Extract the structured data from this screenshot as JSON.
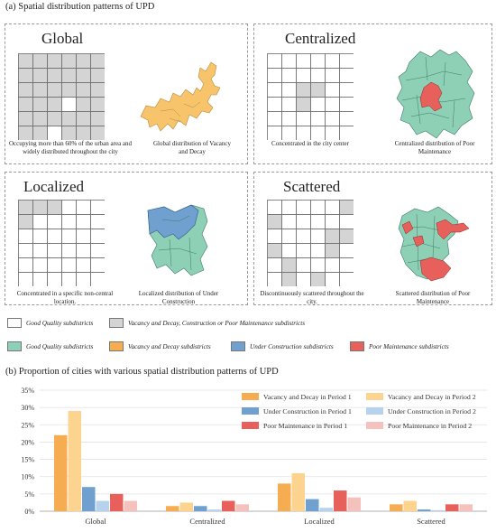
{
  "part_a_title": "(a) Spatial distribution patterns of UPD",
  "part_b_title": "(b) Proportion of cities with various spatial distribution patterns of UPD",
  "colors": {
    "good": "#ffffff",
    "gray": "#d4d4d4",
    "teal": "#8ed0b6",
    "vacancy": "#f6ad51",
    "vacancy_light": "#fcd48f",
    "construction": "#6fa0cf",
    "construction_light": "#b7d2ec",
    "poor": "#e8605b",
    "poor_light": "#f4c1bd",
    "map_vacancy": "#f8c46b"
  },
  "panels": {
    "global": {
      "title": "Global",
      "grid_caption": "Occupying more than 60% of the urban area and widely distributed throughout the city",
      "map_caption": "Global distribution of Vacancy and Decay",
      "grid": [
        [
          1,
          1,
          1,
          1,
          1,
          1
        ],
        [
          1,
          1,
          1,
          1,
          1,
          1
        ],
        [
          1,
          1,
          1,
          1,
          1,
          1
        ],
        [
          1,
          1,
          1,
          0,
          1,
          1
        ],
        [
          1,
          1,
          1,
          1,
          1,
          1
        ],
        [
          1,
          1,
          0,
          1,
          1,
          1
        ]
      ]
    },
    "centralized": {
      "title": "Centralized",
      "grid_caption": "Concentrated in the city center",
      "map_caption": "Centralized distribution of Poor Maintenance",
      "grid": [
        [
          0,
          0,
          0,
          0,
          0,
          0
        ],
        [
          0,
          0,
          0,
          0,
          0,
          0
        ],
        [
          0,
          0,
          1,
          1,
          0,
          0
        ],
        [
          0,
          0,
          1,
          0,
          0,
          0
        ],
        [
          0,
          0,
          0,
          0,
          0,
          0
        ],
        [
          0,
          0,
          0,
          0,
          0,
          0
        ]
      ]
    },
    "localized": {
      "title": "Localized",
      "grid_caption": "Concentrated in a specific non-central location.",
      "map_caption": "Localized distribution of Under Construction",
      "grid": [
        [
          1,
          1,
          1,
          0,
          0,
          0
        ],
        [
          1,
          0,
          0,
          0,
          0,
          0
        ],
        [
          0,
          0,
          0,
          0,
          0,
          0
        ],
        [
          0,
          0,
          0,
          0,
          0,
          0
        ],
        [
          0,
          0,
          0,
          0,
          0,
          0
        ],
        [
          0,
          0,
          0,
          0,
          0,
          0
        ]
      ]
    },
    "scattered": {
      "title": "Scattered",
      "grid_caption": "Discontinuously scattered throughout the city.",
      "map_caption": "Scattered distribution of Poor Maintenance",
      "grid": [
        [
          0,
          0,
          0,
          0,
          0,
          1
        ],
        [
          1,
          0,
          0,
          0,
          0,
          0
        ],
        [
          0,
          0,
          0,
          0,
          1,
          1
        ],
        [
          1,
          0,
          0,
          0,
          1,
          0
        ],
        [
          0,
          1,
          0,
          0,
          0,
          0
        ],
        [
          0,
          1,
          0,
          1,
          0,
          0
        ]
      ]
    }
  },
  "legend": {
    "row1": [
      {
        "label": "Good Quality subdistricts",
        "color": "#ffffff"
      },
      {
        "label": "Vacancy and Decay, Construction or Poor Maintenance subdistricts",
        "color": "#d4d4d4"
      }
    ],
    "row2": [
      {
        "label": "Good Quality subdistricts",
        "color": "#8ed0b6"
      },
      {
        "label": "Vacancy and Decay subdistricts",
        "color": "#f6ad51"
      },
      {
        "label": "Under Construction subdistricts",
        "color": "#6fa0cf"
      },
      {
        "label": "Poor Maintenance subdistricts",
        "color": "#e8605b"
      }
    ]
  },
  "chart_data": {
    "type": "bar",
    "categories": [
      "Global",
      "Centralized",
      "Localized",
      "Scattered"
    ],
    "yticks": [
      "0%",
      "5%",
      "10%",
      "15%",
      "20%",
      "25%",
      "30%",
      "35%"
    ],
    "ylim": [
      0,
      35
    ],
    "legend_position": "top-right",
    "series": [
      {
        "name": "Vacancy and Decay in Period 1",
        "color": "#f6ad51",
        "values": [
          22,
          1.5,
          8,
          2
        ]
      },
      {
        "name": "Vacancy and Decay in Period 2",
        "color": "#fcd48f",
        "values": [
          29,
          2.5,
          11,
          3
        ]
      },
      {
        "name": "Under Construction in Period 1",
        "color": "#6fa0cf",
        "values": [
          7,
          1.5,
          3.5,
          0.5
        ]
      },
      {
        "name": "Under Construction in Period 2",
        "color": "#b7d2ec",
        "values": [
          3,
          0.5,
          1,
          0.3
        ]
      },
      {
        "name": "Poor Maintenance in Period 1",
        "color": "#e8605b",
        "values": [
          5,
          3,
          6,
          2
        ]
      },
      {
        "name": "Poor Maintenance in Period 2",
        "color": "#f4c1bd",
        "values": [
          3,
          2,
          4,
          2
        ]
      }
    ]
  }
}
